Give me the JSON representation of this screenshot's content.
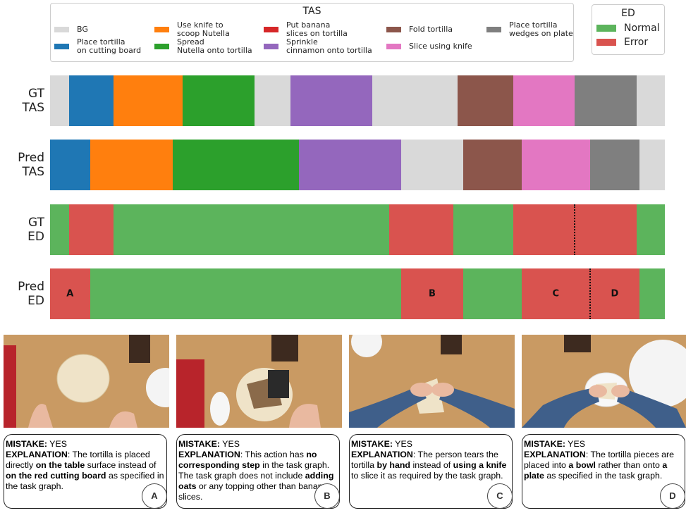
{
  "chart_data": {
    "type": "timeline",
    "xlim": [
      0,
      100
    ],
    "tas_legend": {
      "title": "TAS",
      "classes": [
        {
          "name": "BG",
          "color": "#d9d9d9"
        },
        {
          "name": "Place tortilla\non cutting board",
          "color": "#1f77b4"
        },
        {
          "name": "Use knife to\nscoop Nutella",
          "color": "#ff7f0e"
        },
        {
          "name": "Spread\nNutella onto tortilla",
          "color": "#2ca02c"
        },
        {
          "name": "Put banana\nslices on tortilla",
          "color": "#d62728"
        },
        {
          "name": "Sprinkle\ncinnamon onto tortilla",
          "color": "#9467bd"
        },
        {
          "name": "Fold tortilla",
          "color": "#8c564b"
        },
        {
          "name": "Slice using knife",
          "color": "#e377c2"
        },
        {
          "name": "Place tortilla\nwedges on plate",
          "color": "#7f7f7f"
        }
      ]
    },
    "ed_legend": {
      "title": "ED",
      "classes": [
        {
          "name": "Normal",
          "color": "#5cb45c"
        },
        {
          "name": "Error",
          "color": "#d9534f"
        }
      ]
    },
    "rows": [
      {
        "label": "GT\nTAS",
        "legend": "tas_legend",
        "segments": [
          {
            "class": 0,
            "value": 3.1
          },
          {
            "class": 1,
            "value": 7.2
          },
          {
            "class": 2,
            "value": 11.3
          },
          {
            "class": 3,
            "value": 11.7
          },
          {
            "class": 0,
            "value": 5.8
          },
          {
            "class": 5,
            "value": 13.3
          },
          {
            "class": 0,
            "value": 13.9
          },
          {
            "class": 6,
            "value": 9.0
          },
          {
            "class": 7,
            "value": 10.0
          },
          {
            "class": 8,
            "value": 10.1
          },
          {
            "class": 0,
            "value": 4.6
          }
        ],
        "markers": []
      },
      {
        "label": "Pred\nTAS",
        "legend": "tas_legend",
        "segments": [
          {
            "class": 1,
            "value": 6.5
          },
          {
            "class": 2,
            "value": 13.5
          },
          {
            "class": 3,
            "value": 20.5
          },
          {
            "class": 5,
            "value": 16.6
          },
          {
            "class": 0,
            "value": 10.1
          },
          {
            "class": 6,
            "value": 9.5
          },
          {
            "class": 7,
            "value": 11.1
          },
          {
            "class": 8,
            "value": 8.1
          },
          {
            "class": 0,
            "value": 4.1
          }
        ],
        "markers": []
      },
      {
        "label": "GT\nED",
        "legend": "ed_legend",
        "segments": [
          {
            "class": 0,
            "value": 3.1
          },
          {
            "class": 1,
            "value": 7.2
          },
          {
            "class": 0,
            "value": 44.9
          },
          {
            "class": 1,
            "value": 10.4
          },
          {
            "class": 0,
            "value": 9.7
          },
          {
            "class": 1,
            "value": 20.1
          },
          {
            "class": 0,
            "value": 4.6
          }
        ],
        "markers": [
          85.3
        ]
      },
      {
        "label": "Pred\nED",
        "legend": "ed_legend",
        "segments": [
          {
            "class": 1,
            "value": 6.5,
            "label": "A"
          },
          {
            "class": 0,
            "value": 50.6
          },
          {
            "class": 1,
            "value": 10.1,
            "label": "B"
          },
          {
            "class": 0,
            "value": 9.5
          },
          {
            "class": 1,
            "value": 11.1,
            "label": "C"
          },
          {
            "class": 1,
            "value": 8.1,
            "label": "D"
          },
          {
            "class": 0,
            "value": 4.1
          }
        ],
        "markers": [
          87.8
        ]
      }
    ]
  },
  "panels": [
    {
      "letter": "A",
      "mistake": [
        {
          "text": "MISTAKE:",
          "bold": true
        },
        {
          "text": " YES",
          "bold": false
        }
      ],
      "explanation": [
        {
          "text": "EXPLANATION",
          "bold": true
        },
        {
          "text": ": The tortilla is placed directly ",
          "bold": false
        },
        {
          "text": "on the table",
          "bold": true
        },
        {
          "text": " surface instead of ",
          "bold": false
        },
        {
          "text": "on the red cutting board",
          "bold": true
        },
        {
          "text": " as specified in the task graph.",
          "bold": false
        }
      ]
    },
    {
      "letter": "B",
      "mistake": [
        {
          "text": "MISTAKE:",
          "bold": true
        },
        {
          "text": " YES",
          "bold": false
        }
      ],
      "explanation": [
        {
          "text": "EXPLANATION",
          "bold": true
        },
        {
          "text": ": This action has ",
          "bold": false
        },
        {
          "text": "no corresponding step",
          "bold": true
        },
        {
          "text": " in the task graph. The task graph does not include ",
          "bold": false
        },
        {
          "text": "adding oats",
          "bold": true
        },
        {
          "text": " or any topping other than banana slices.",
          "bold": false
        }
      ]
    },
    {
      "letter": "C",
      "mistake": [
        {
          "text": "MISTAKE:",
          "bold": true
        },
        {
          "text": " YES",
          "bold": false
        }
      ],
      "explanation": [
        {
          "text": "EXPLANATION",
          "bold": true
        },
        {
          "text": ": The person tears the tortilla ",
          "bold": false
        },
        {
          "text": "by hand",
          "bold": true
        },
        {
          "text": " instead of ",
          "bold": false
        },
        {
          "text": "using a knife",
          "bold": true
        },
        {
          "text": " to slice it as required by the task graph.",
          "bold": false
        }
      ]
    },
    {
      "letter": "D",
      "mistake": [
        {
          "text": "MISTAKE:",
          "bold": true
        },
        {
          "text": " YES",
          "bold": false
        }
      ],
      "explanation": [
        {
          "text": "EXPLANATION",
          "bold": true
        },
        {
          "text": ": The tortilla pieces are placed into ",
          "bold": false
        },
        {
          "text": "a bowl",
          "bold": true
        },
        {
          "text": " rather than onto ",
          "bold": false
        },
        {
          "text": "a plate",
          "bold": true
        },
        {
          "text": " as specified in the task graph.",
          "bold": false
        }
      ]
    }
  ]
}
